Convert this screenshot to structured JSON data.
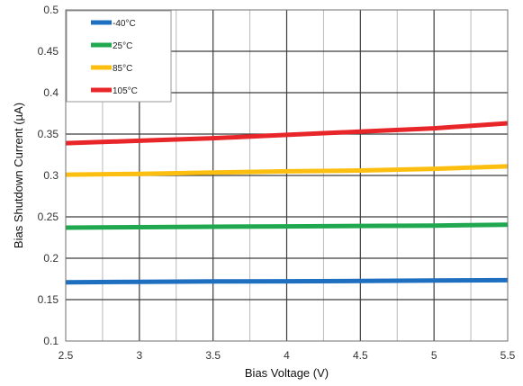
{
  "chart_data": {
    "type": "line",
    "xlabel": "Bias Voltage (V)",
    "ylabel": "Bias Shutdown Current (µA)",
    "xlim": [
      2.5,
      5.5
    ],
    "ylim": [
      0.1,
      0.5
    ],
    "x_ticks": [
      "2.5",
      "3",
      "3.5",
      "4",
      "4.5",
      "5",
      "5.5"
    ],
    "y_ticks": [
      "0.1",
      "0.15",
      "0.2",
      "0.25",
      "0.3",
      "0.35",
      "0.4",
      "0.45",
      "0.5"
    ],
    "grid": true,
    "legend_position": "top-left",
    "series": [
      {
        "name": "-40°C",
        "color": "#1f6fc0",
        "x": [
          2.5,
          3.0,
          3.5,
          4.0,
          4.5,
          5.0,
          5.5
        ],
        "y": [
          0.171,
          0.1715,
          0.172,
          0.1722,
          0.1725,
          0.173,
          0.1735
        ]
      },
      {
        "name": "25°C",
        "color": "#1fa84f",
        "x": [
          2.5,
          3.0,
          3.5,
          4.0,
          4.5,
          5.0,
          5.5
        ],
        "y": [
          0.237,
          0.2375,
          0.238,
          0.2385,
          0.239,
          0.2395,
          0.2405
        ]
      },
      {
        "name": "85°C",
        "color": "#fdbf0f",
        "x": [
          2.5,
          3.0,
          3.5,
          4.0,
          4.5,
          5.0,
          5.5
        ],
        "y": [
          0.301,
          0.302,
          0.3035,
          0.305,
          0.306,
          0.308,
          0.311
        ]
      },
      {
        "name": "105°C",
        "color": "#e8262a",
        "x": [
          2.5,
          3.0,
          3.5,
          4.0,
          4.5,
          5.0,
          5.5
        ],
        "y": [
          0.339,
          0.342,
          0.345,
          0.349,
          0.353,
          0.357,
          0.363
        ]
      }
    ]
  }
}
